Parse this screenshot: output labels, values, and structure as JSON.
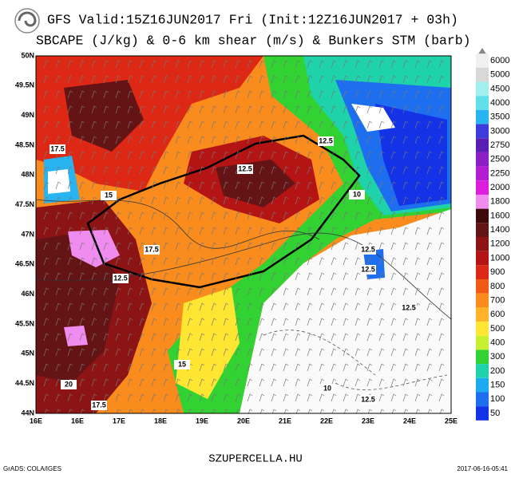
{
  "header": {
    "title_line1": "GFS Valid:15Z16JUN2017 Fri (Init:12Z16JUN2017 + 03h)",
    "title_line2": "SBCAPE (J/kg) & 0-6 km shear (m/s) & Bunkers STM (barb)"
  },
  "map": {
    "lat_labels": [
      "50N",
      "49.5N",
      "49N",
      "48.5N",
      "48N",
      "47.5N",
      "47N",
      "46.5N",
      "46N",
      "45.5N",
      "45N",
      "44.5N",
      "44N"
    ],
    "lon_labels": [
      "16E",
      "16E",
      "17E",
      "18E",
      "19E",
      "20E",
      "21E",
      "22E",
      "23E",
      "24E",
      "25E"
    ],
    "contour_labels": [
      "17.5",
      "12.5",
      "12.5",
      "10",
      "15",
      "17.5",
      "12.5",
      "12.5",
      "12.5",
      "12.5",
      "15",
      "20",
      "17.5",
      "10",
      "12.5"
    ]
  },
  "legend": {
    "levels": [
      {
        "label": "6000",
        "color": "#f0f0f0"
      },
      {
        "label": "5000",
        "color": "#d8d8d8"
      },
      {
        "label": "4500",
        "color": "#a0f0f0"
      },
      {
        "label": "4000",
        "color": "#60e0e8"
      },
      {
        "label": "3500",
        "color": "#28b4f0"
      },
      {
        "label": "3000",
        "color": "#3c3cdc"
      },
      {
        "label": "2750",
        "color": "#5a1eb4"
      },
      {
        "label": "2500",
        "color": "#8c1ec8"
      },
      {
        "label": "2250",
        "color": "#b41ed2"
      },
      {
        "label": "2000",
        "color": "#dc1edc"
      },
      {
        "label": "1800",
        "color": "#f08cf0"
      },
      {
        "label": "1600",
        "color": "#3c0a0a"
      },
      {
        "label": "1400",
        "color": "#641414"
      },
      {
        "label": "1200",
        "color": "#8c1414"
      },
      {
        "label": "1000",
        "color": "#b41414"
      },
      {
        "label": "900",
        "color": "#dc2814"
      },
      {
        "label": "800",
        "color": "#f05a14"
      },
      {
        "label": "700",
        "color": "#fa8c1e"
      },
      {
        "label": "600",
        "color": "#ffb428"
      },
      {
        "label": "500",
        "color": "#ffe632"
      },
      {
        "label": "400",
        "color": "#c8f032"
      },
      {
        "label": "300",
        "color": "#32d232"
      },
      {
        "label": "200",
        "color": "#1ed2aa"
      },
      {
        "label": "150",
        "color": "#1eaaf0"
      },
      {
        "label": "100",
        "color": "#1e6ef0"
      },
      {
        "label": "50",
        "color": "#1432e6"
      }
    ]
  },
  "footer": {
    "site": "SZUPERCELLA.HU",
    "credit": "GrADS: COLA/IGES",
    "timestamp": "2017-06-16-05:41"
  }
}
